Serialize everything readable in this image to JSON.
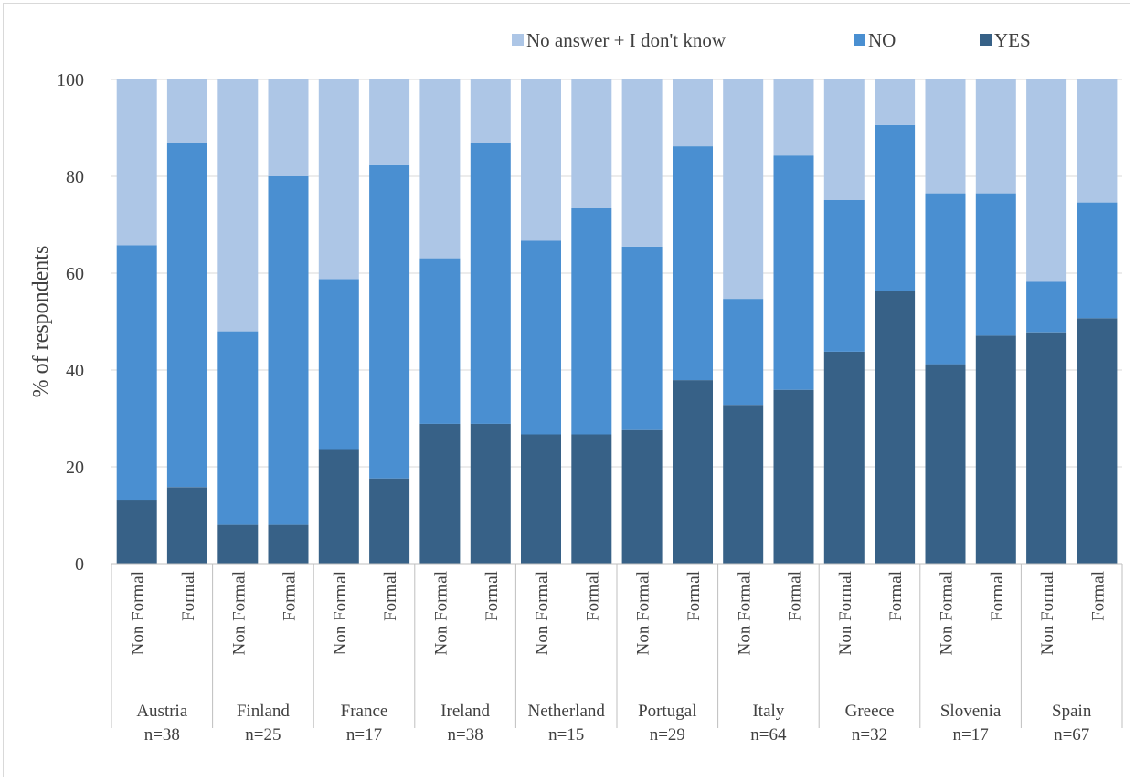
{
  "chart_data": {
    "type": "bar",
    "stacked": true,
    "title": "",
    "xlabel": "",
    "ylabel": "% of respondents",
    "ylim": [
      0,
      100
    ],
    "yticks": [
      0,
      20,
      40,
      60,
      80,
      100
    ],
    "grid": true,
    "legend_position": "top-right",
    "groups": [
      {
        "name": "Austria",
        "n": "n=38"
      },
      {
        "name": "Finland",
        "n": "n=25"
      },
      {
        "name": "France",
        "n": "n=17"
      },
      {
        "name": "Ireland",
        "n": "n=38"
      },
      {
        "name": "Netherland",
        "n": "n=15"
      },
      {
        "name": "Portugal",
        "n": "n=29"
      },
      {
        "name": "Italy",
        "n": "n=64"
      },
      {
        "name": "Greece",
        "n": "n=32"
      },
      {
        "name": "Slovenia",
        "n": "n=17"
      },
      {
        "name": "Spain",
        "n": "n=67"
      }
    ],
    "subcategories": [
      "Non Formal",
      "Formal"
    ],
    "series": [
      {
        "name": "YES",
        "color": "#376187",
        "values": [
          13.2,
          15.8,
          8.0,
          8.0,
          23.5,
          17.6,
          28.9,
          28.9,
          26.7,
          26.7,
          27.6,
          37.9,
          32.8,
          35.9,
          43.8,
          56.3,
          41.2,
          47.1,
          47.8,
          50.7
        ]
      },
      {
        "name": "NO",
        "color": "#4a8fd1",
        "values": [
          52.6,
          71.1,
          40.0,
          72.0,
          35.3,
          64.7,
          34.2,
          57.9,
          40.0,
          46.7,
          37.9,
          48.3,
          21.9,
          48.4,
          31.3,
          34.3,
          35.3,
          29.4,
          10.4,
          23.9
        ]
      },
      {
        "name": "No answer + I don't know",
        "color": "#adc6e6",
        "values": [
          34.2,
          13.1,
          52.0,
          20.0,
          41.2,
          17.7,
          36.9,
          13.2,
          33.3,
          26.6,
          34.5,
          13.8,
          45.3,
          15.7,
          24.9,
          9.4,
          23.5,
          23.5,
          41.8,
          25.4
        ]
      }
    ],
    "legend_order": [
      "No answer + I don't know",
      "NO",
      "YES"
    ]
  }
}
